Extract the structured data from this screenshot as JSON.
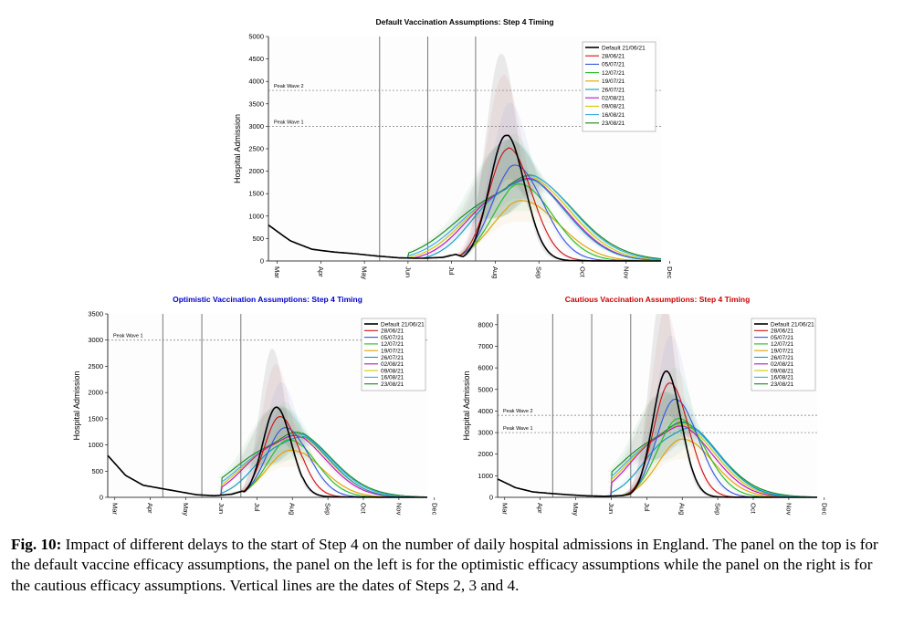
{
  "caption": {
    "label": "Fig. 10:",
    "text": " Impact of different delays to the start of Step 4 on the number of daily hospital admissions in England. The panel on the top is for the default vaccine efficacy assumptions, the panel on the left is for the optimistic efficacy assumptions while the panel on the right is for the cautious efficacy assumptions. Vertical lines are the dates of Steps 2, 3 and 4."
  },
  "colors": {
    "default": "#000000",
    "series": [
      "#cc1111",
      "#3355dd",
      "#22bb22",
      "#e0a000",
      "#1199bb",
      "#bb11bb",
      "#cccc00",
      "#33aaee",
      "#118811"
    ],
    "optimistic_title": "#0000cc",
    "cautious_title": "#cc0000"
  },
  "chart_data": [
    {
      "id": "top",
      "type": "line",
      "title": "Default Vaccination Assumptions: Step 4 Timing",
      "ylabel": "Hospital Admission",
      "xlabel": "",
      "x_ticks": [
        "Mar",
        "Apr",
        "May",
        "Jun",
        "Jul",
        "Aug",
        "Sep",
        "Oct",
        "Nov",
        "Dec"
      ],
      "ylim": [
        0,
        5000
      ],
      "y_ticks": [
        0,
        500,
        1000,
        1500,
        2000,
        2500,
        3000,
        3500,
        4000,
        4500,
        5000
      ],
      "vlines": [
        2.55,
        3.65,
        4.75
      ],
      "hlines": [
        {
          "label": "Peak Wave 2",
          "value": 3800
        },
        {
          "label": "Peak Wave 1",
          "value": 3000
        }
      ],
      "legend_position": "top-right",
      "baseline": [
        [
          0,
          800
        ],
        [
          0.5,
          450
        ],
        [
          1,
          260
        ],
        [
          1.5,
          200
        ],
        [
          2,
          160
        ],
        [
          2.5,
          110
        ],
        [
          3,
          70
        ],
        [
          3.5,
          60
        ],
        [
          4,
          80
        ],
        [
          4.3,
          150
        ]
      ],
      "series": [
        {
          "name": "Default 21/06/21",
          "peak_x": 5.45,
          "peak": 2800
        },
        {
          "name": "28/06/21",
          "peak_x": 5.5,
          "peak": 2500
        },
        {
          "name": "05/07/21",
          "peak_x": 5.65,
          "peak": 2120
        },
        {
          "name": "12/07/21",
          "peak_x": 5.75,
          "peak": 1700
        },
        {
          "name": "19/07/21",
          "peak_x": 5.8,
          "peak": 1330
        },
        {
          "name": "26/07/21",
          "peak_x": 5.35,
          "peak": 1400
        },
        {
          "name": "02/08/21",
          "peak_x": 5.3,
          "peak": 1380
        },
        {
          "name": "09/08/21",
          "peak_x": 5.3,
          "peak": 1370
        },
        {
          "name": "16/08/21",
          "peak_x": 5.3,
          "peak": 1370
        },
        {
          "name": "23/08/21",
          "peak_x": 5.25,
          "peak": 1360
        }
      ]
    },
    {
      "id": "left",
      "type": "line",
      "title": "Optimistic Vaccination Assumptions: Step 4 Timing",
      "ylabel": "Hospital Admission",
      "xlabel": "",
      "x_ticks": [
        "Mar",
        "Apr",
        "May",
        "Jun",
        "Jul",
        "Aug",
        "Sep",
        "Oct",
        "Nov",
        "Dec"
      ],
      "ylim": [
        0,
        3500
      ],
      "y_ticks": [
        0,
        500,
        1000,
        1500,
        2000,
        2500,
        3000,
        3500
      ],
      "vlines": [
        1.55,
        2.65,
        3.75
      ],
      "hlines": [
        {
          "label": "Peak Wave 1",
          "value": 3000
        }
      ],
      "legend_position": "top-right",
      "baseline": [
        [
          0,
          800
        ],
        [
          0.5,
          420
        ],
        [
          1,
          230
        ],
        [
          1.5,
          170
        ],
        [
          2,
          110
        ],
        [
          2.5,
          50
        ],
        [
          3,
          30
        ],
        [
          3.5,
          60
        ],
        [
          3.8,
          120
        ]
      ],
      "series": [
        {
          "name": "Default 21/06/21",
          "peak_x": 4.75,
          "peak": 1720
        },
        {
          "name": "28/06/21",
          "peak_x": 4.85,
          "peak": 1540
        },
        {
          "name": "05/07/21",
          "peak_x": 5.0,
          "peak": 1330
        },
        {
          "name": "12/07/21",
          "peak_x": 5.1,
          "peak": 1100
        },
        {
          "name": "19/07/21",
          "peak_x": 5.15,
          "peak": 900
        },
        {
          "name": "26/07/21",
          "peak_x": 4.8,
          "peak": 890
        },
        {
          "name": "02/08/21",
          "peak_x": 4.6,
          "peak": 890
        },
        {
          "name": "09/08/21",
          "peak_x": 4.6,
          "peak": 880
        },
        {
          "name": "16/08/21",
          "peak_x": 4.6,
          "peak": 880
        },
        {
          "name": "23/08/21",
          "peak_x": 4.55,
          "peak": 890
        }
      ]
    },
    {
      "id": "right",
      "type": "line",
      "title": "Cautious Vaccination Assumptions: Step 4 Timing",
      "ylabel": "Hospital Admission",
      "xlabel": "",
      "x_ticks": [
        "Mar",
        "Apr",
        "May",
        "Jun",
        "Jul",
        "Aug",
        "Sep",
        "Oct",
        "Nov",
        "Dec"
      ],
      "ylim": [
        0,
        8500
      ],
      "y_ticks": [
        0,
        1000,
        2000,
        3000,
        4000,
        5000,
        6000,
        7000,
        8000
      ],
      "vlines": [
        1.55,
        2.65,
        3.75
      ],
      "hlines": [
        {
          "label": "Peak Wave 2",
          "value": 3800
        },
        {
          "label": "Peak Wave 1",
          "value": 3000
        }
      ],
      "legend_position": "top-right",
      "baseline": [
        [
          0,
          850
        ],
        [
          0.5,
          450
        ],
        [
          1,
          250
        ],
        [
          1.5,
          180
        ],
        [
          2,
          120
        ],
        [
          2.5,
          70
        ],
        [
          3,
          50
        ],
        [
          3.5,
          80
        ],
        [
          3.8,
          160
        ]
      ],
      "series": [
        {
          "name": "Default 21/06/21",
          "peak_x": 4.75,
          "peak": 5850
        },
        {
          "name": "28/06/21",
          "peak_x": 4.85,
          "peak": 5300
        },
        {
          "name": "05/07/21",
          "peak_x": 5.0,
          "peak": 4550
        },
        {
          "name": "12/07/21",
          "peak_x": 5.1,
          "peak": 3650
        },
        {
          "name": "19/07/21",
          "peak_x": 5.2,
          "peak": 2700
        },
        {
          "name": "26/07/21",
          "peak_x": 4.8,
          "peak": 2500
        },
        {
          "name": "02/08/21",
          "peak_x": 4.5,
          "peak": 2500
        },
        {
          "name": "09/08/21",
          "peak_x": 4.5,
          "peak": 2500
        },
        {
          "name": "16/08/21",
          "peak_x": 4.5,
          "peak": 2500
        },
        {
          "name": "23/08/21",
          "peak_x": 4.45,
          "peak": 2500
        }
      ]
    }
  ]
}
